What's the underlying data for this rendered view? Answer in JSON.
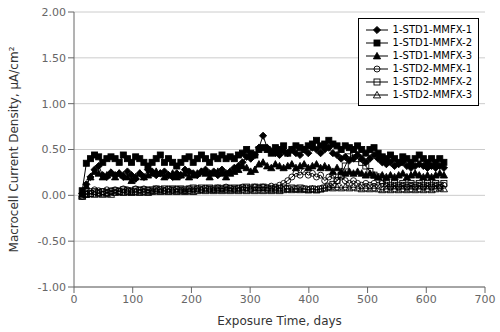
{
  "chart_data": {
    "type": "line",
    "title": "",
    "xlabel": "Exposure Time, days",
    "ylabel": "Macrocell Current Density, μA/cm²",
    "xlim": [
      0,
      700
    ],
    "ylim": [
      -1.0,
      2.0
    ],
    "xticks": [
      0,
      100,
      200,
      300,
      400,
      500,
      600,
      700
    ],
    "yticks": [
      {
        "value": -1.0,
        "label": "-1.00"
      },
      {
        "value": -0.5,
        "label": "-0.50"
      },
      {
        "value": 0.0,
        "label": "0.00"
      },
      {
        "value": 0.5,
        "label": "0.50"
      },
      {
        "value": 1.0,
        "label": "1.00"
      },
      {
        "value": 1.5,
        "label": "1.50"
      },
      {
        "value": 2.0,
        "label": "2.00"
      }
    ],
    "grid": "y",
    "legend": "upper right",
    "x": [
      14,
      21,
      28,
      35,
      42,
      49,
      56,
      63,
      70,
      77,
      84,
      91,
      98,
      105,
      112,
      119,
      126,
      133,
      140,
      147,
      154,
      161,
      168,
      175,
      182,
      189,
      196,
      203,
      210,
      217,
      224,
      231,
      238,
      245,
      252,
      259,
      266,
      273,
      280,
      287,
      294,
      301,
      308,
      315,
      322,
      329,
      336,
      343,
      350,
      357,
      364,
      371,
      378,
      385,
      392,
      399,
      406,
      413,
      420,
      427,
      434,
      441,
      448,
      455,
      462,
      469,
      476,
      483,
      490,
      497,
      504,
      511,
      518,
      525,
      532,
      539,
      546,
      553,
      560,
      567,
      574,
      581,
      588,
      595,
      602,
      609,
      616,
      623,
      630
    ],
    "series": [
      {
        "name": "1-STD1-MMFX-1",
        "color": "#000000",
        "marker": "diamond",
        "line_style": "solid",
        "values": [
          0.02,
          0.12,
          0.2,
          0.28,
          0.32,
          0.22,
          0.2,
          0.25,
          0.22,
          0.24,
          0.2,
          0.26,
          0.22,
          0.18,
          0.24,
          0.2,
          0.28,
          0.26,
          0.22,
          0.24,
          0.26,
          0.22,
          0.2,
          0.24,
          0.22,
          0.28,
          0.26,
          0.24,
          0.22,
          0.26,
          0.28,
          0.24,
          0.26,
          0.22,
          0.28,
          0.24,
          0.26,
          0.3,
          0.32,
          0.36,
          0.42,
          0.4,
          0.44,
          0.52,
          0.65,
          0.52,
          0.48,
          0.46,
          0.44,
          0.48,
          0.46,
          0.5,
          0.46,
          0.44,
          0.5,
          0.46,
          0.52,
          0.5,
          0.46,
          0.5,
          0.52,
          0.46,
          0.44,
          0.4,
          0.42,
          0.38,
          0.4,
          0.44,
          0.4,
          0.36,
          0.4,
          0.44,
          0.4,
          0.36,
          0.34,
          0.36,
          0.32,
          0.34,
          0.36,
          0.32,
          0.3,
          0.32,
          0.34,
          0.32,
          0.3,
          0.32,
          0.3,
          0.32,
          0.3
        ]
      },
      {
        "name": "1-STD1-MMFX-2",
        "color": "#000000",
        "marker": "square",
        "line_style": "solid",
        "values": [
          0.05,
          0.35,
          0.4,
          0.44,
          0.42,
          0.36,
          0.4,
          0.42,
          0.4,
          0.36,
          0.44,
          0.4,
          0.36,
          0.42,
          0.4,
          0.36,
          0.32,
          0.36,
          0.4,
          0.44,
          0.36,
          0.4,
          0.36,
          0.32,
          0.36,
          0.4,
          0.42,
          0.36,
          0.4,
          0.44,
          0.4,
          0.36,
          0.42,
          0.4,
          0.44,
          0.4,
          0.42,
          0.4,
          0.44,
          0.46,
          0.5,
          0.46,
          0.44,
          0.5,
          0.52,
          0.5,
          0.46,
          0.52,
          0.5,
          0.54,
          0.46,
          0.5,
          0.54,
          0.52,
          0.5,
          0.54,
          0.56,
          0.6,
          0.54,
          0.56,
          0.6,
          0.56,
          0.54,
          0.5,
          0.54,
          0.52,
          0.5,
          0.54,
          0.5,
          0.46,
          0.5,
          0.52,
          0.46,
          0.42,
          0.4,
          0.44,
          0.4,
          0.36,
          0.42,
          0.4,
          0.36,
          0.4,
          0.44,
          0.4,
          0.36,
          0.4,
          0.36,
          0.4,
          0.36
        ]
      },
      {
        "name": "1-STD1-MMFX-3",
        "color": "#000000",
        "marker": "triangle",
        "line_style": "solid",
        "values": [
          0.01,
          0.1,
          0.2,
          0.26,
          0.24,
          0.2,
          0.22,
          0.24,
          0.2,
          0.24,
          0.22,
          0.2,
          0.16,
          0.2,
          0.24,
          0.2,
          0.22,
          0.24,
          0.26,
          0.24,
          0.2,
          0.22,
          0.24,
          0.2,
          0.22,
          0.24,
          0.2,
          0.22,
          0.24,
          0.26,
          0.24,
          0.2,
          0.24,
          0.26,
          0.24,
          0.2,
          0.24,
          0.26,
          0.28,
          0.32,
          0.3,
          0.26,
          0.28,
          0.34,
          0.36,
          0.32,
          0.3,
          0.34,
          0.32,
          0.3,
          0.32,
          0.34,
          0.3,
          0.32,
          0.34,
          0.3,
          0.32,
          0.34,
          0.3,
          0.32,
          0.3,
          0.26,
          0.3,
          0.26,
          0.24,
          0.26,
          0.24,
          0.26,
          0.24,
          0.22,
          0.24,
          0.22,
          0.2,
          0.22,
          0.2,
          0.22,
          0.2,
          0.22,
          0.24,
          0.2,
          0.22,
          0.24,
          0.22,
          0.2,
          0.22,
          0.2,
          0.22,
          0.24,
          0.22
        ]
      },
      {
        "name": "1-STD2-MMFX-1",
        "color": "#000000",
        "marker": "circle-open",
        "line_style": "solid",
        "values": [
          -0.01,
          0.02,
          0.04,
          0.06,
          0.05,
          0.04,
          0.06,
          0.05,
          0.06,
          0.05,
          0.07,
          0.06,
          0.05,
          0.07,
          0.06,
          0.07,
          0.06,
          0.05,
          0.07,
          0.06,
          0.05,
          0.07,
          0.06,
          0.07,
          0.06,
          0.05,
          0.07,
          0.06,
          0.07,
          0.06,
          0.08,
          0.07,
          0.06,
          0.08,
          0.07,
          0.09,
          0.08,
          0.07,
          0.08,
          0.09,
          0.08,
          0.07,
          0.09,
          0.08,
          0.09,
          0.08,
          0.1,
          0.09,
          0.11,
          0.13,
          0.16,
          0.2,
          0.24,
          0.22,
          0.26,
          0.22,
          0.24,
          0.2,
          0.22,
          0.16,
          0.2,
          0.22,
          0.16,
          0.2,
          0.16,
          0.13,
          0.16,
          0.13,
          0.11,
          0.13,
          0.11,
          0.13,
          0.11,
          0.13,
          0.11,
          0.09,
          0.11,
          0.09,
          0.11,
          0.09,
          0.11,
          0.09,
          0.11,
          0.09,
          0.11,
          0.09,
          0.11,
          0.09,
          0.11
        ]
      },
      {
        "name": "1-STD2-MMFX-2",
        "color": "#000000",
        "marker": "square-open",
        "line_style": "solid",
        "values": [
          -0.01,
          0.01,
          0.02,
          0.04,
          0.03,
          0.04,
          0.03,
          0.04,
          0.05,
          0.04,
          0.06,
          0.05,
          0.04,
          0.06,
          0.05,
          0.06,
          0.05,
          0.06,
          0.07,
          0.06,
          0.07,
          0.06,
          0.07,
          0.06,
          0.07,
          0.06,
          0.07,
          0.08,
          0.07,
          0.08,
          0.07,
          0.08,
          0.07,
          0.08,
          0.07,
          0.08,
          0.07,
          0.08,
          0.07,
          0.08,
          0.09,
          0.08,
          0.09,
          0.08,
          0.09,
          0.08,
          0.07,
          0.08,
          0.07,
          0.08,
          0.07,
          0.08,
          0.07,
          0.08,
          0.07,
          0.06,
          0.07,
          0.06,
          0.07,
          0.08,
          0.1,
          0.12,
          0.16,
          0.22,
          0.32,
          0.42,
          0.44,
          0.4,
          0.36,
          0.32,
          0.26,
          0.22,
          0.2,
          0.16,
          0.13,
          0.11,
          0.13,
          0.11,
          0.13,
          0.11,
          0.13,
          0.11,
          0.13,
          0.11,
          0.13,
          0.11,
          0.13,
          0.11,
          0.13
        ]
      },
      {
        "name": "1-STD2-MMFX-3",
        "color": "#000000",
        "marker": "triangle-open",
        "line_style": "solid",
        "values": [
          -0.01,
          0.01,
          0.02,
          0.01,
          0.02,
          0.01,
          0.02,
          0.01,
          0.03,
          0.04,
          0.03,
          0.04,
          0.03,
          0.04,
          0.03,
          0.04,
          0.03,
          0.04,
          0.05,
          0.04,
          0.05,
          0.04,
          0.05,
          0.04,
          0.05,
          0.04,
          0.05,
          0.04,
          0.05,
          0.06,
          0.05,
          0.06,
          0.05,
          0.06,
          0.05,
          0.06,
          0.05,
          0.06,
          0.05,
          0.06,
          0.05,
          0.06,
          0.05,
          0.06,
          0.05,
          0.06,
          0.05,
          0.06,
          0.05,
          0.06,
          0.07,
          0.06,
          0.07,
          0.06,
          0.07,
          0.06,
          0.07,
          0.06,
          0.07,
          0.08,
          0.09,
          0.08,
          0.09,
          0.08,
          0.09,
          0.08,
          0.09,
          0.08,
          0.07,
          0.08,
          0.07,
          0.08,
          0.07,
          0.06,
          0.07,
          0.06,
          0.07,
          0.06,
          0.07,
          0.06,
          0.07,
          0.06,
          0.07,
          0.06,
          0.07,
          0.06,
          0.07,
          0.08,
          0.07
        ]
      }
    ]
  }
}
